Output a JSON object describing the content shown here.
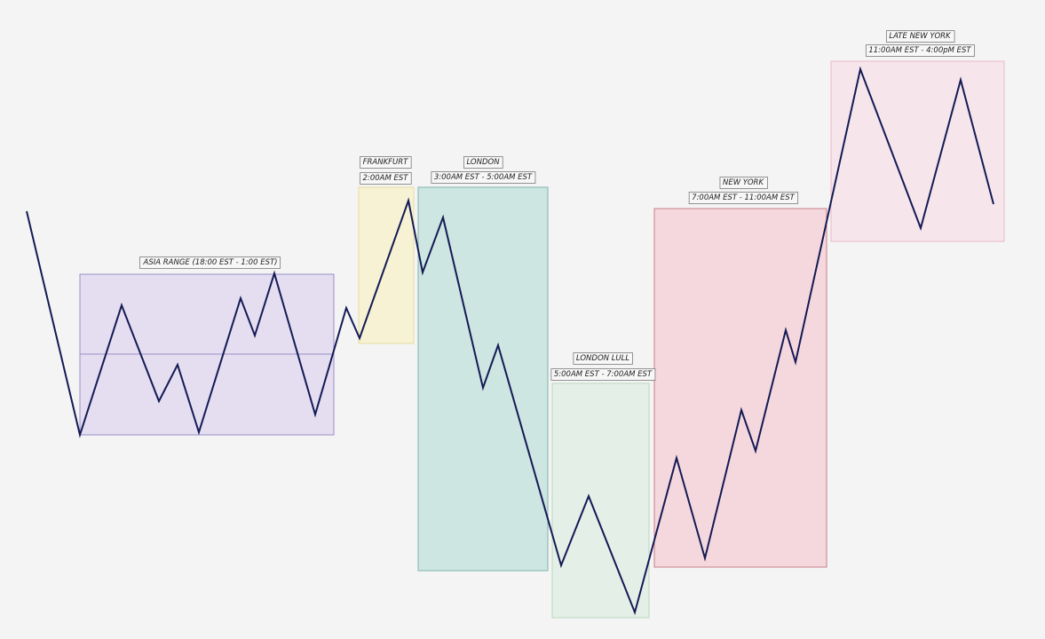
{
  "sessions": [
    {
      "id": "asia",
      "title": "ASIA RANGE (18:00 EST - 1:00 EST)",
      "time": "",
      "fill": "#e4def0",
      "stroke": "#9a8fc8"
    },
    {
      "id": "frankfurt",
      "title": "FRANKFURT",
      "time": "2:00AM EST",
      "fill": "#f7f2d4",
      "stroke": "#e6dca2"
    },
    {
      "id": "london",
      "title": "LONDON",
      "time": "3:00AM EST - 5:00AM EST",
      "fill": "#cde6e1",
      "stroke": "#7fb5aa"
    },
    {
      "id": "london-lull",
      "title": "LONDON LULL",
      "time": "5:00AM EST - 7:00AM EST",
      "fill": "#e4f0e7",
      "stroke": "#b9d6bf"
    },
    {
      "id": "new-york",
      "title": "NEW YORK",
      "time": "7:00AM EST - 11:00AM EST",
      "fill": "#f5d8dd",
      "stroke": "#c77e89"
    },
    {
      "id": "late-new-york",
      "title": "LATE NEW YORK",
      "time": "11:00AM EST - 4:00pM EST",
      "fill": "#f6e6ec",
      "stroke": "#eab8c6"
    }
  ],
  "price_line_color": "#141a55",
  "asia_midline_color": "#9a8fc8"
}
